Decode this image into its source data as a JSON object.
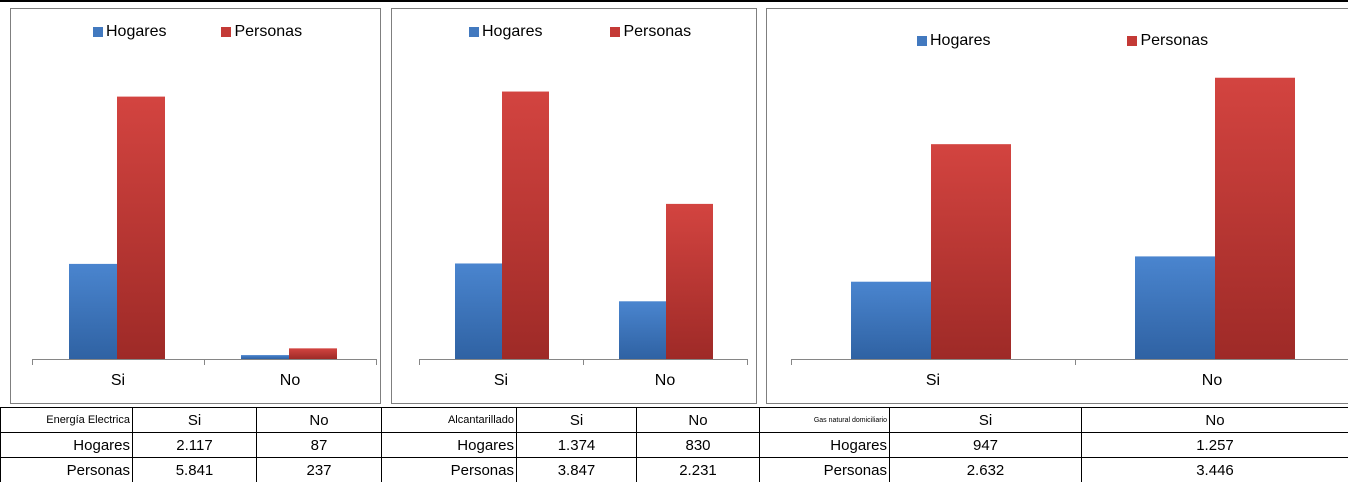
{
  "colors": {
    "hogares": "#4279bf",
    "personas": "#c43a36"
  },
  "legend": {
    "hogares": "Hogares",
    "personas": "Personas"
  },
  "chart_data": [
    {
      "type": "bar",
      "categories": [
        "Si",
        "No"
      ],
      "series": [
        {
          "name": "Hogares",
          "values": [
            2117,
            87
          ]
        },
        {
          "name": "Personas",
          "values": [
            5841,
            237
          ]
        }
      ],
      "ylim": [
        0,
        6500
      ]
    },
    {
      "type": "bar",
      "categories": [
        "Si",
        "No"
      ],
      "series": [
        {
          "name": "Hogares",
          "values": [
            1374,
            830
          ]
        },
        {
          "name": "Personas",
          "values": [
            3847,
            2231
          ]
        }
      ],
      "ylim": [
        0,
        4200
      ]
    },
    {
      "type": "bar",
      "categories": [
        "Si",
        "No"
      ],
      "series": [
        {
          "name": "Hogares",
          "values": [
            947,
            1257
          ]
        },
        {
          "name": "Personas",
          "values": [
            2632,
            3446
          ]
        }
      ],
      "ylim": [
        0,
        3700
      ]
    }
  ],
  "tables": [
    {
      "header": "Energía Electrica",
      "cols": [
        "Si",
        "No"
      ],
      "rows": [
        {
          "label": "Hogares",
          "values": [
            "2.117",
            "87"
          ]
        },
        {
          "label": "Personas",
          "values": [
            "5.841",
            "237"
          ]
        }
      ]
    },
    {
      "header": "Alcantarillado",
      "cols": [
        "Si",
        "No"
      ],
      "rows": [
        {
          "label": "Hogares",
          "values": [
            "1.374",
            "830"
          ]
        },
        {
          "label": "Personas",
          "values": [
            "3.847",
            "2.231"
          ]
        }
      ]
    },
    {
      "header": "Gas natural domiciliario",
      "cols": [
        "Si",
        "No"
      ],
      "rows": [
        {
          "label": "Hogares",
          "values": [
            "947",
            "1.257"
          ]
        },
        {
          "label": "Personas",
          "values": [
            "2.632",
            "3.446"
          ]
        }
      ]
    }
  ]
}
